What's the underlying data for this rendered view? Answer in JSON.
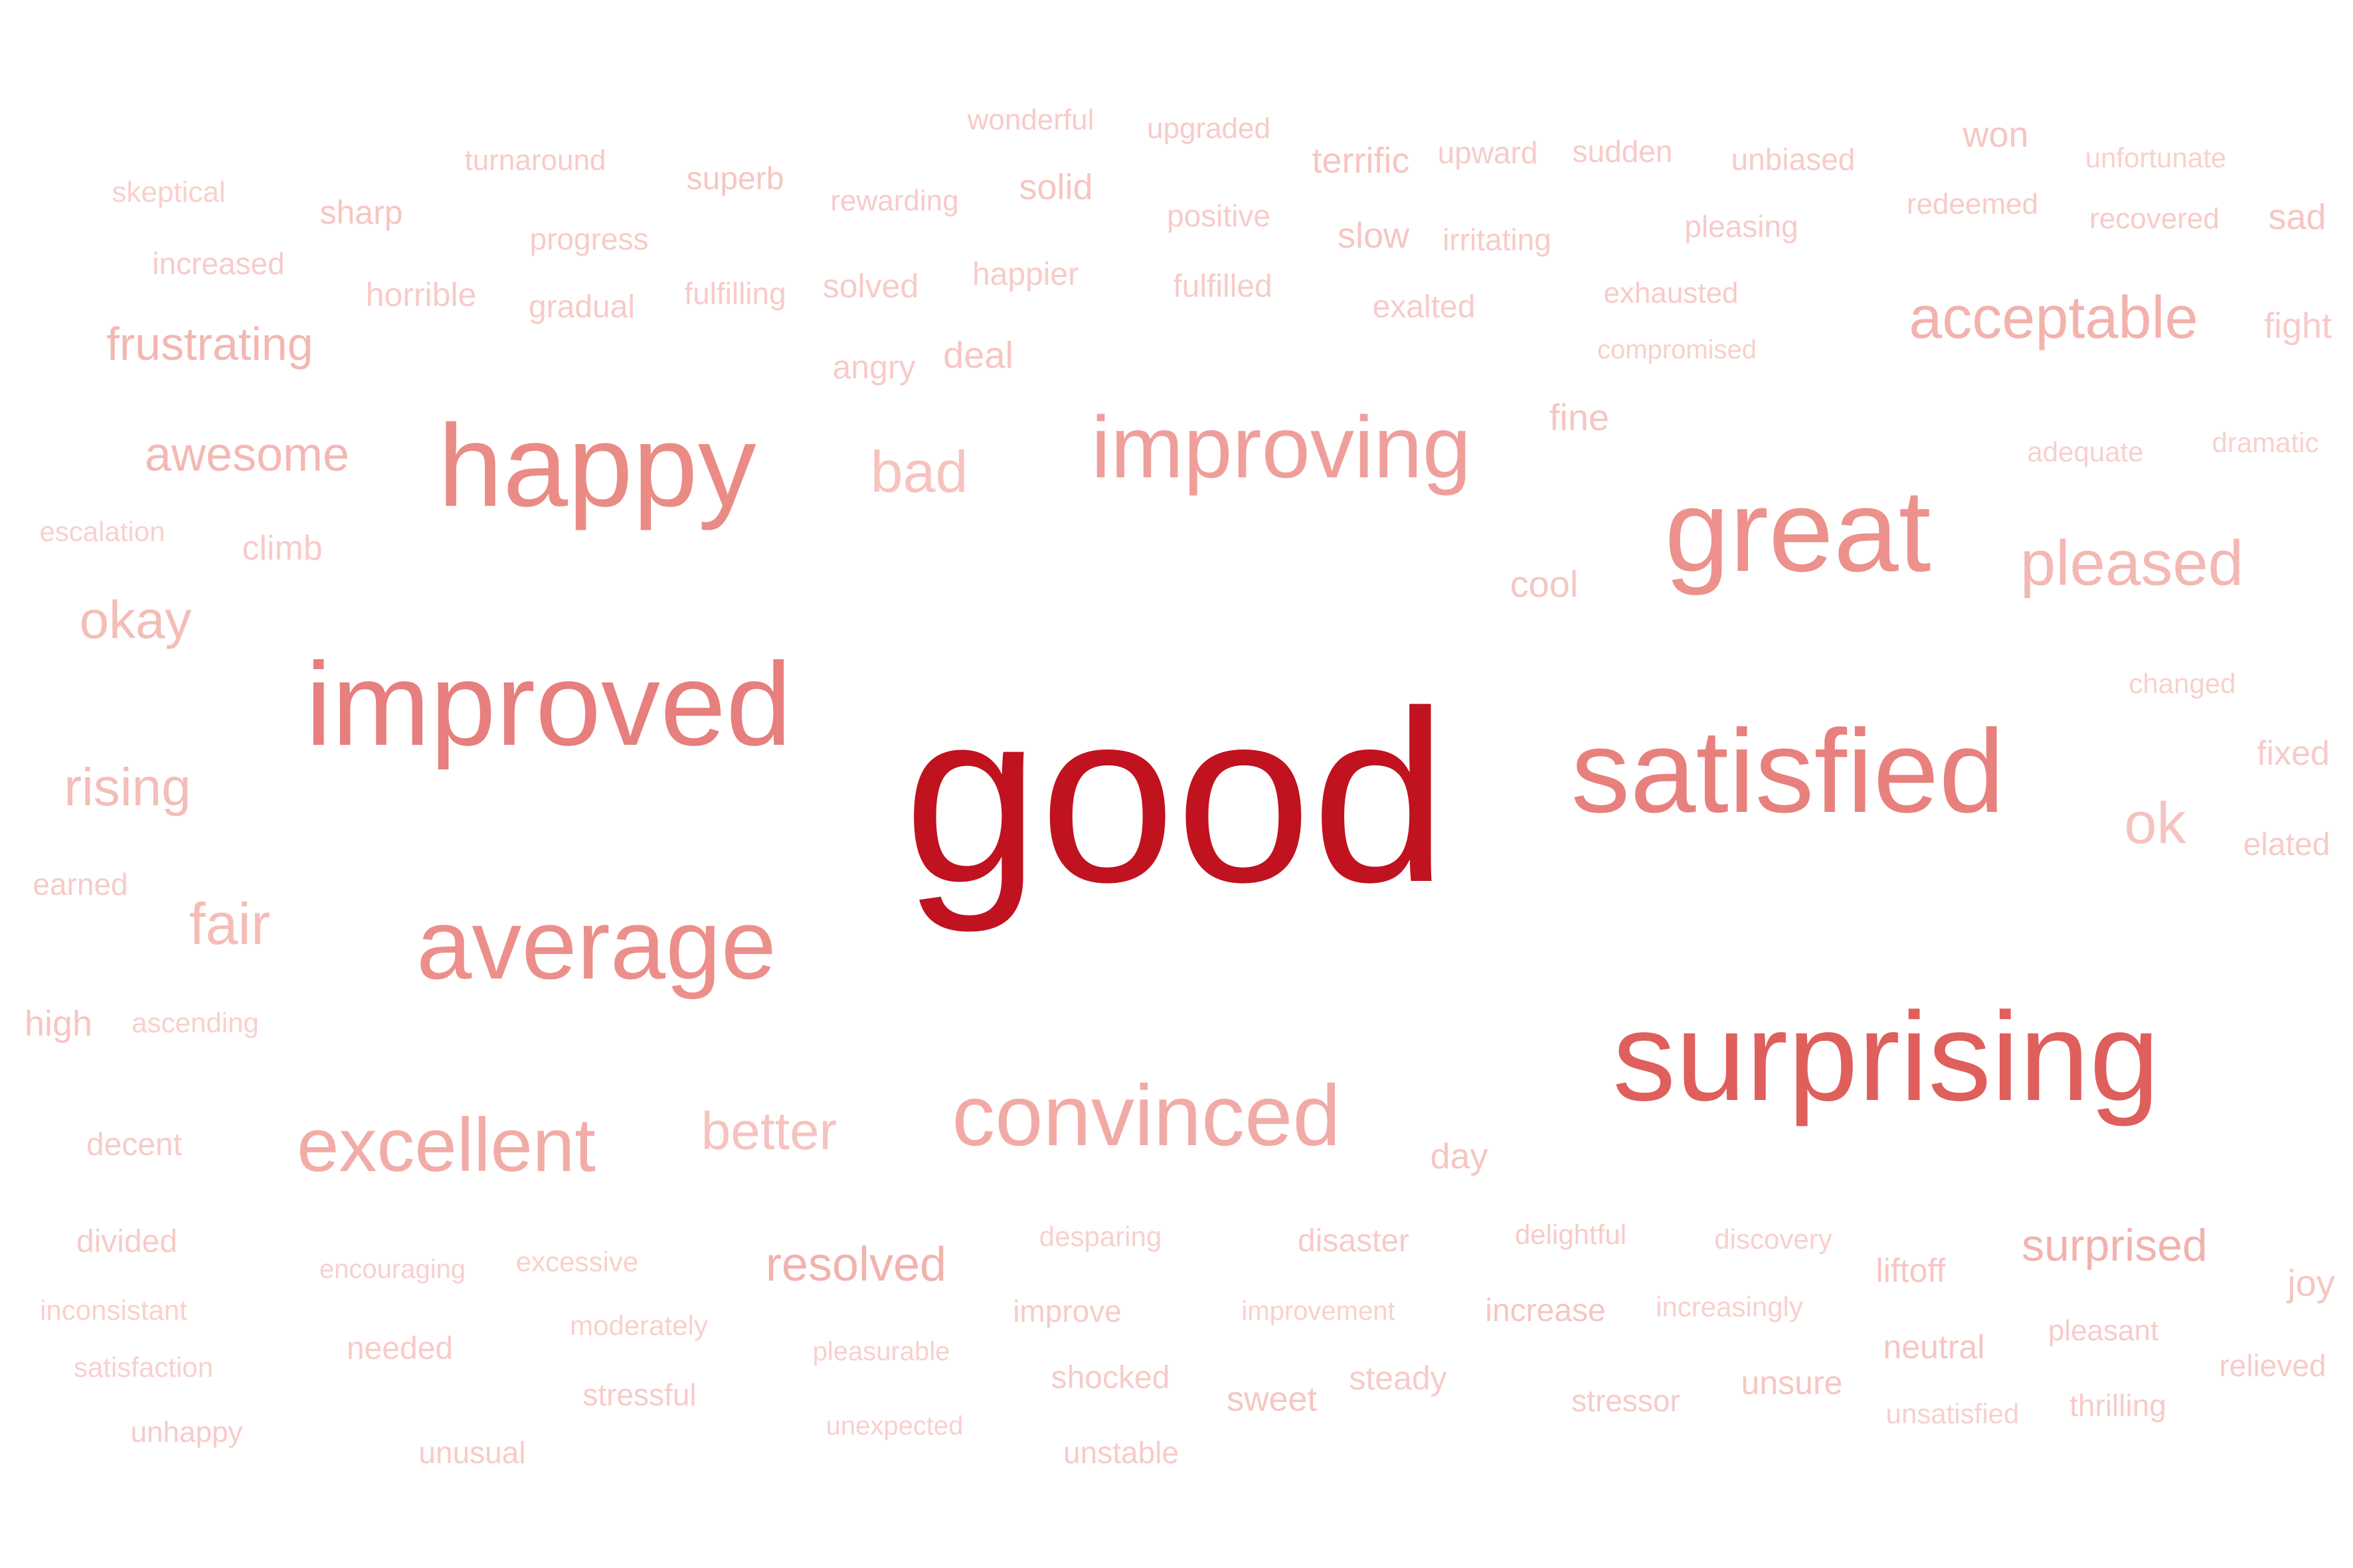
{
  "words": [
    {
      "text": "good",
      "color": "#c1121f"
    },
    {
      "text": "surprising",
      "color": "#df5f5c"
    },
    {
      "text": "improved",
      "color": "#e67f7d"
    },
    {
      "text": "satisfied",
      "color": "#e8817e"
    },
    {
      "text": "happy",
      "color": "#ea8b86"
    },
    {
      "text": "average",
      "color": "#ec8f8b"
    },
    {
      "text": "great",
      "color": "#ec918b"
    },
    {
      "text": "improving",
      "color": "#ef9f9b"
    },
    {
      "text": "convinced",
      "color": "#f1aaa6"
    },
    {
      "text": "excellent",
      "color": "#f2aca8"
    },
    {
      "text": "acceptable",
      "color": "#f3b2ad"
    },
    {
      "text": "pleased",
      "color": "#f4b8b4"
    },
    {
      "text": "bad",
      "color": "#f6c3bf"
    },
    {
      "text": "better",
      "color": "#f6c3bf"
    },
    {
      "text": "ok",
      "color": "#f6c3bf"
    },
    {
      "text": "awesome",
      "color": "#f4b8b4"
    },
    {
      "text": "frustrating",
      "color": "#f3b7b2"
    },
    {
      "text": "okay",
      "color": "#f4bdb8"
    },
    {
      "text": "rising",
      "color": "#f4bdb8"
    },
    {
      "text": "fair",
      "color": "#f4bdb8"
    },
    {
      "text": "resolved",
      "color": "#f2b2ae"
    },
    {
      "text": "surprised",
      "color": "#f2b2ae"
    },
    {
      "text": "wonderful",
      "color": "#f7cbc8"
    },
    {
      "text": "upgraded",
      "color": "#f7cbc8"
    },
    {
      "text": "turnaround",
      "color": "#f7cbc8"
    },
    {
      "text": "superb",
      "color": "#f6c6c2"
    },
    {
      "text": "rewarding",
      "color": "#f7cbc8"
    },
    {
      "text": "solid",
      "color": "#f6c6c2"
    },
    {
      "text": "terrific",
      "color": "#f6c6c2"
    },
    {
      "text": "upward",
      "color": "#f7cbc8"
    },
    {
      "text": "sudden",
      "color": "#f7cbc8"
    },
    {
      "text": "unbiased",
      "color": "#f7cbc8"
    },
    {
      "text": "won",
      "color": "#f6c6c2"
    },
    {
      "text": "unfortunate",
      "color": "#f8d0cd"
    },
    {
      "text": "skeptical",
      "color": "#f8d0cd"
    },
    {
      "text": "sharp",
      "color": "#f6c6c2"
    },
    {
      "text": "progress",
      "color": "#f7cbc8"
    },
    {
      "text": "positive",
      "color": "#f7cbc8"
    },
    {
      "text": "slow",
      "color": "#f6c6c2"
    },
    {
      "text": "irritating",
      "color": "#f7cbc8"
    },
    {
      "text": "pleasing",
      "color": "#f7cbc8"
    },
    {
      "text": "redeemed",
      "color": "#f7cbc8"
    },
    {
      "text": "recovered",
      "color": "#f7cbc8"
    },
    {
      "text": "sad",
      "color": "#f6c6c2"
    },
    {
      "text": "increased",
      "color": "#f7cbc8"
    },
    {
      "text": "horrible",
      "color": "#f7cbc8"
    },
    {
      "text": "gradual",
      "color": "#f7cbc8"
    },
    {
      "text": "fulfilling",
      "color": "#f7cbc8"
    },
    {
      "text": "solved",
      "color": "#f7cbc8"
    },
    {
      "text": "happier",
      "color": "#f7cbc8"
    },
    {
      "text": "fulfilled",
      "color": "#f7cbc8"
    },
    {
      "text": "exalted",
      "color": "#f7cbc8"
    },
    {
      "text": "exhausted",
      "color": "#f7cbc8"
    },
    {
      "text": "fight",
      "color": "#f7cbc8"
    },
    {
      "text": "compromised",
      "color": "#f8d0cd"
    },
    {
      "text": "angry",
      "color": "#f7cbc8"
    },
    {
      "text": "deal",
      "color": "#f6c6c2"
    },
    {
      "text": "fine",
      "color": "#f6c6c2"
    },
    {
      "text": "adequate",
      "color": "#f8d0cd"
    },
    {
      "text": "dramatic",
      "color": "#f8d0cd"
    },
    {
      "text": "escalation",
      "color": "#f8d0cd"
    },
    {
      "text": "climb",
      "color": "#f7cbc8"
    },
    {
      "text": "cool",
      "color": "#f6c6c2"
    },
    {
      "text": "changed",
      "color": "#f8d0cd"
    },
    {
      "text": "fixed",
      "color": "#f7cbc8"
    },
    {
      "text": "elated",
      "color": "#f7cbc8"
    },
    {
      "text": "earned",
      "color": "#f7cbc8"
    },
    {
      "text": "high",
      "color": "#f6c6c2"
    },
    {
      "text": "ascending",
      "color": "#f8d0cd"
    },
    {
      "text": "decent",
      "color": "#f7cbc8"
    },
    {
      "text": "day",
      "color": "#f6c6c2"
    },
    {
      "text": "divided",
      "color": "#f7cbc8"
    },
    {
      "text": "encouraging",
      "color": "#f8d0cd"
    },
    {
      "text": "excessive",
      "color": "#f8d0cd"
    },
    {
      "text": "desparing",
      "color": "#f8d0cd"
    },
    {
      "text": "disaster",
      "color": "#f7cbc8"
    },
    {
      "text": "delightful",
      "color": "#f7cbc8"
    },
    {
      "text": "discovery",
      "color": "#f8d0cd"
    },
    {
      "text": "liftoff",
      "color": "#f6c6c2"
    },
    {
      "text": "joy",
      "color": "#f6c6c2"
    },
    {
      "text": "inconsistant",
      "color": "#f8d0cd"
    },
    {
      "text": "moderately",
      "color": "#f8d0cd"
    },
    {
      "text": "improve",
      "color": "#f7cbc8"
    },
    {
      "text": "improvement",
      "color": "#f8d0cd"
    },
    {
      "text": "increase",
      "color": "#f6c6c2"
    },
    {
      "text": "increasingly",
      "color": "#f8d0cd"
    },
    {
      "text": "pleasant",
      "color": "#f7cbc8"
    },
    {
      "text": "satisfaction",
      "color": "#f8d0cd"
    },
    {
      "text": "needed",
      "color": "#f7cbc8"
    },
    {
      "text": "pleasurable",
      "color": "#f8d0cd"
    },
    {
      "text": "neutral",
      "color": "#f6c6c2"
    },
    {
      "text": "relieved",
      "color": "#f7cbc8"
    },
    {
      "text": "stressful",
      "color": "#f7cbc8"
    },
    {
      "text": "shocked",
      "color": "#f7cbc8"
    },
    {
      "text": "steady",
      "color": "#f7cbc8"
    },
    {
      "text": "sweet",
      "color": "#f6c6c2"
    },
    {
      "text": "stressor",
      "color": "#f7cbc8"
    },
    {
      "text": "unsure",
      "color": "#f6c6c2"
    },
    {
      "text": "unhappy",
      "color": "#f7cbc8"
    },
    {
      "text": "unexpected",
      "color": "#f8d0cd"
    },
    {
      "text": "unsatisfied",
      "color": "#f8d0cd"
    },
    {
      "text": "thrilling",
      "color": "#f7cbc8"
    },
    {
      "text": "unusual",
      "color": "#f7cbc8"
    },
    {
      "text": "unstable",
      "color": "#f7cbc8"
    }
  ]
}
